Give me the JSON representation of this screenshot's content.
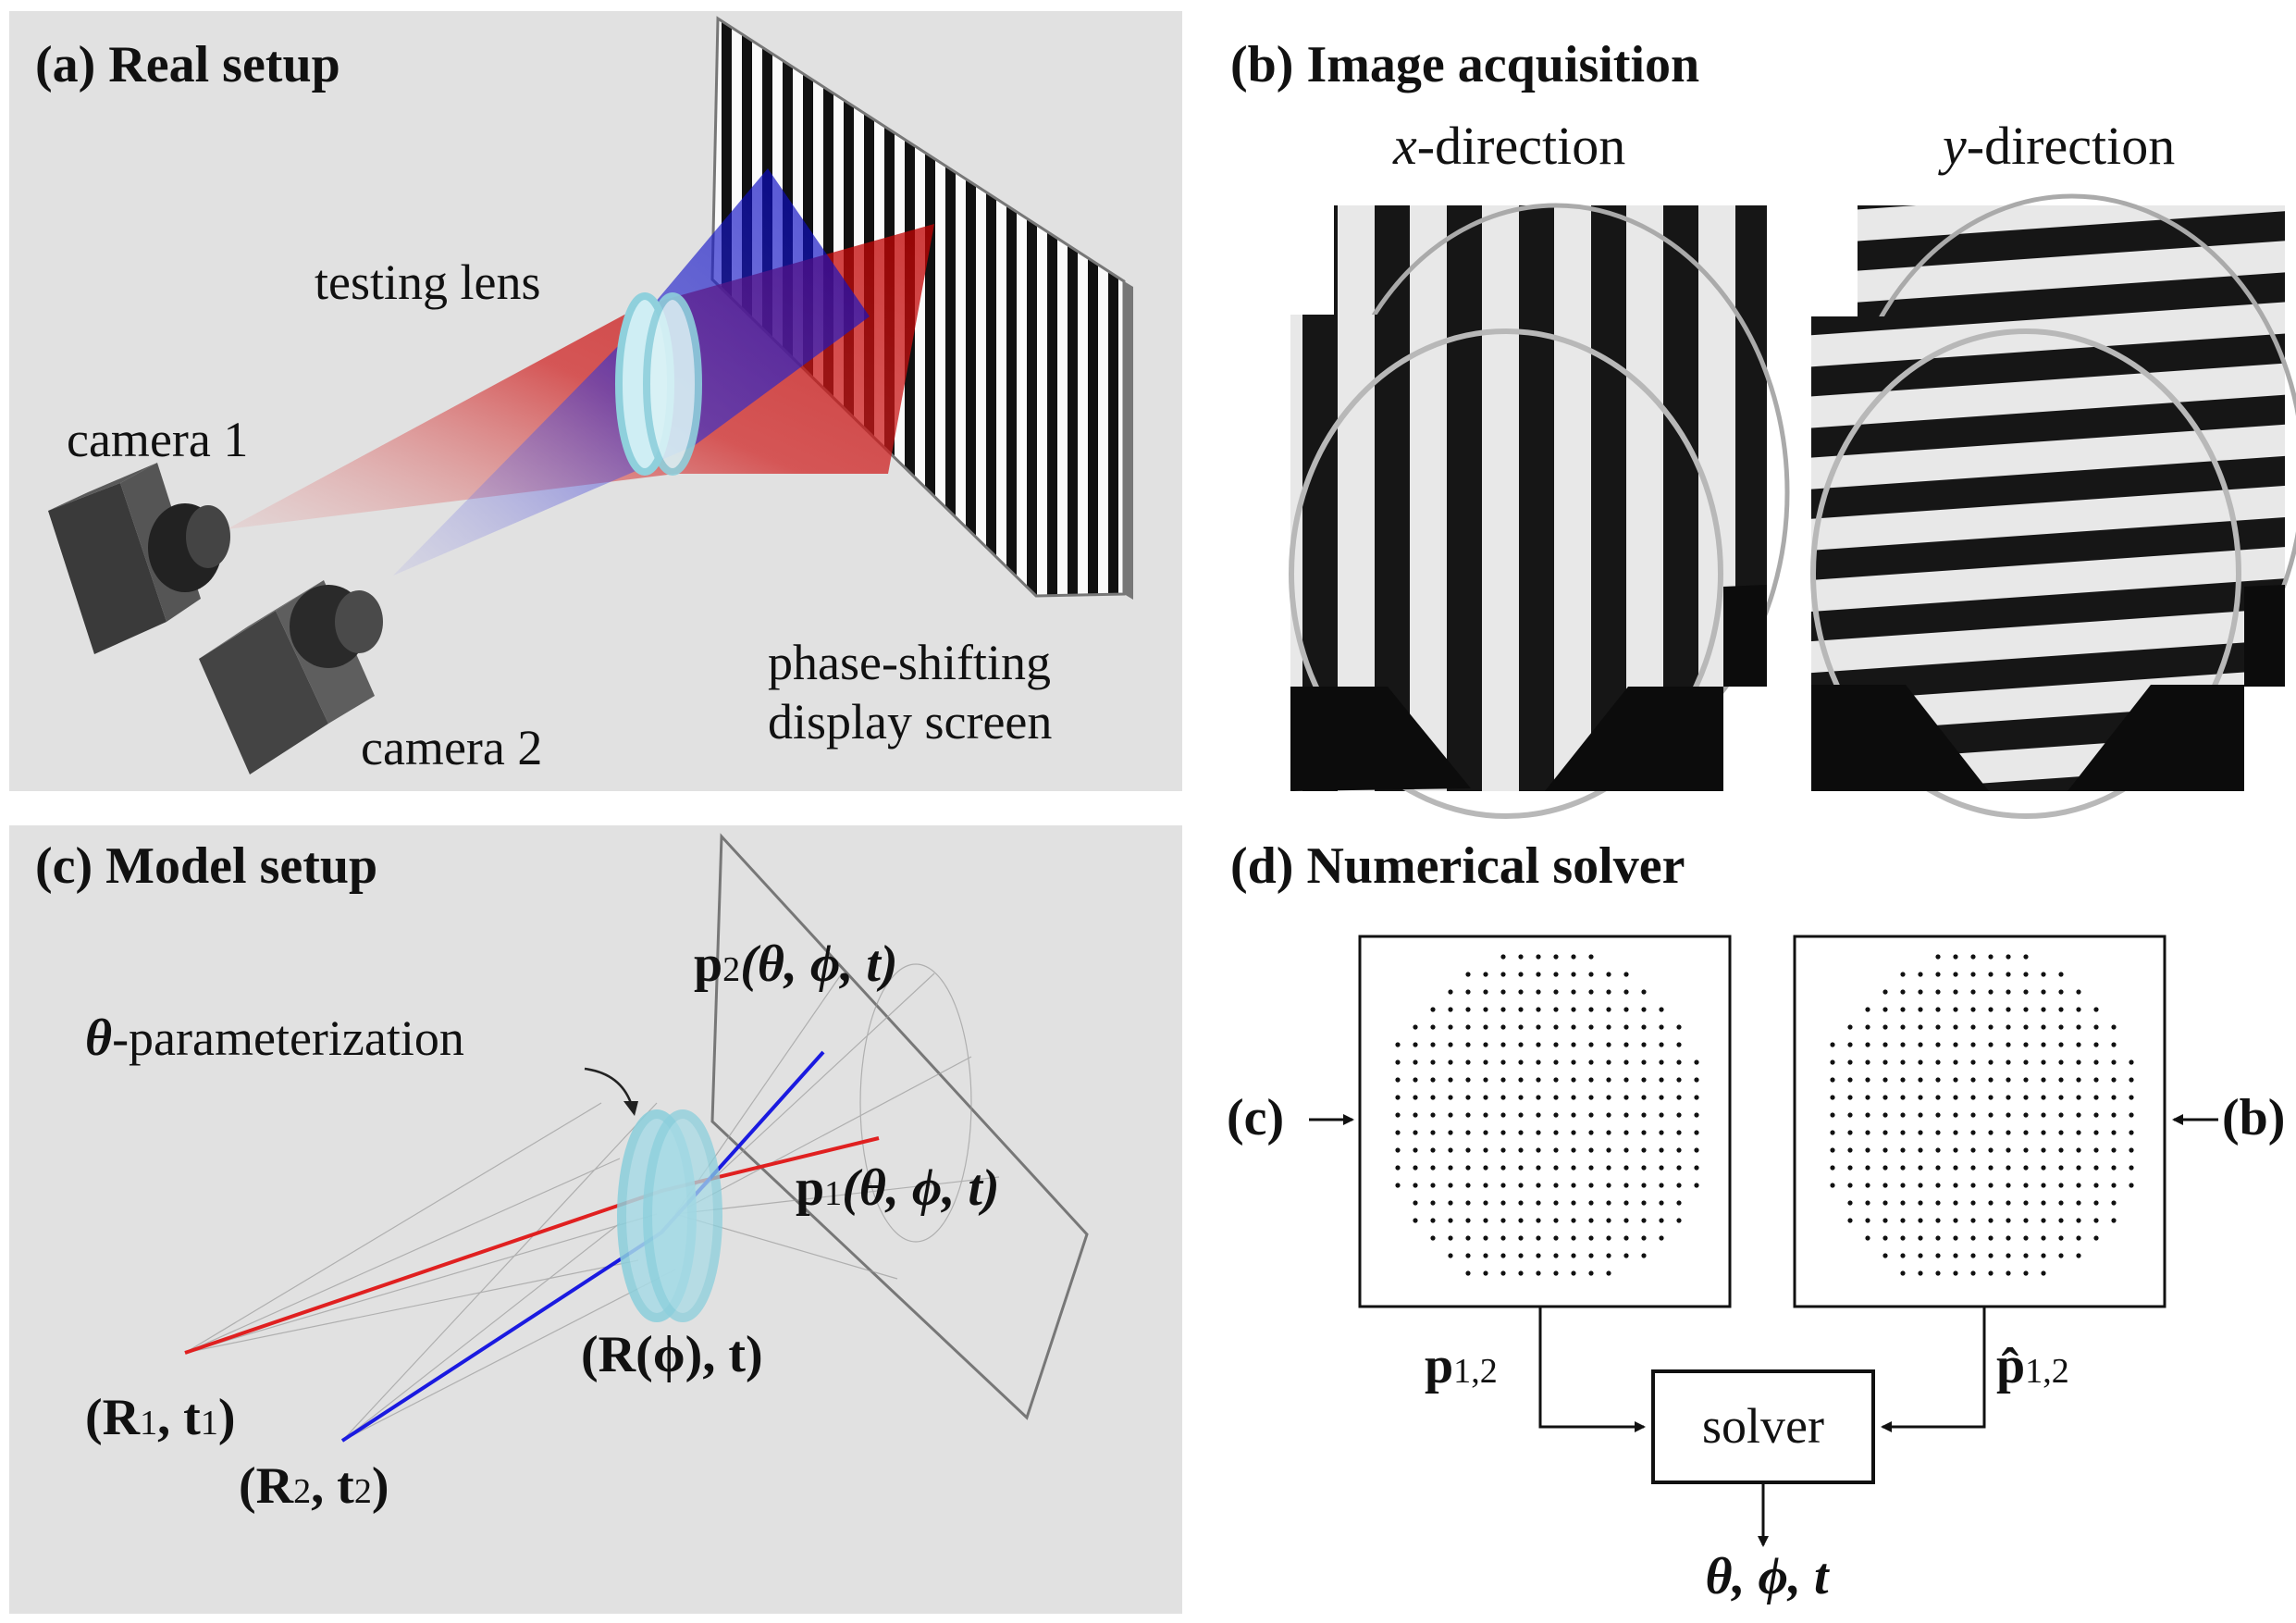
{
  "panels": {
    "a": {
      "title": "(a) Real setup",
      "testing_lens": "testing lens",
      "camera1": "camera 1",
      "camera2": "camera 2",
      "screen_line1": "phase-shifting",
      "screen_line2": "display screen"
    },
    "b": {
      "title": "(b) Image acquisition",
      "x_var": "x",
      "x_suffix": "-direction",
      "y_var": "y",
      "y_suffix": "-direction"
    },
    "c": {
      "title": "(c) Model setup",
      "theta_param_sym": "θ",
      "theta_param_text": "-parameterization",
      "p2": {
        "base": "p",
        "sub": "2",
        "args": "(θ, ϕ, t)"
      },
      "p1": {
        "base": "p",
        "sub": "1",
        "args": "(θ, ϕ, t)"
      },
      "lens_pose": "(R(ϕ), t)",
      "cam1_pose": {
        "R": "R",
        "Rsub": "1",
        "t": "t",
        "tsub": "1"
      },
      "cam2_pose": {
        "R": "R",
        "Rsub": "2",
        "t": "t",
        "tsub": "2"
      }
    },
    "d": {
      "title": "(d) Numerical solver",
      "left_input": "(c)",
      "right_input": "(b)",
      "p_label": "p",
      "p_sub": "1,2",
      "phat_label": "p̂",
      "phat_sub": "1,2",
      "solver": "solver",
      "output": "θ, ϕ, t"
    }
  },
  "colors": {
    "panel_bg": "#e1e1e1",
    "red_ray": "#e02020",
    "blue_ray": "#1a1ae0",
    "lens": "#a8dbe6"
  }
}
